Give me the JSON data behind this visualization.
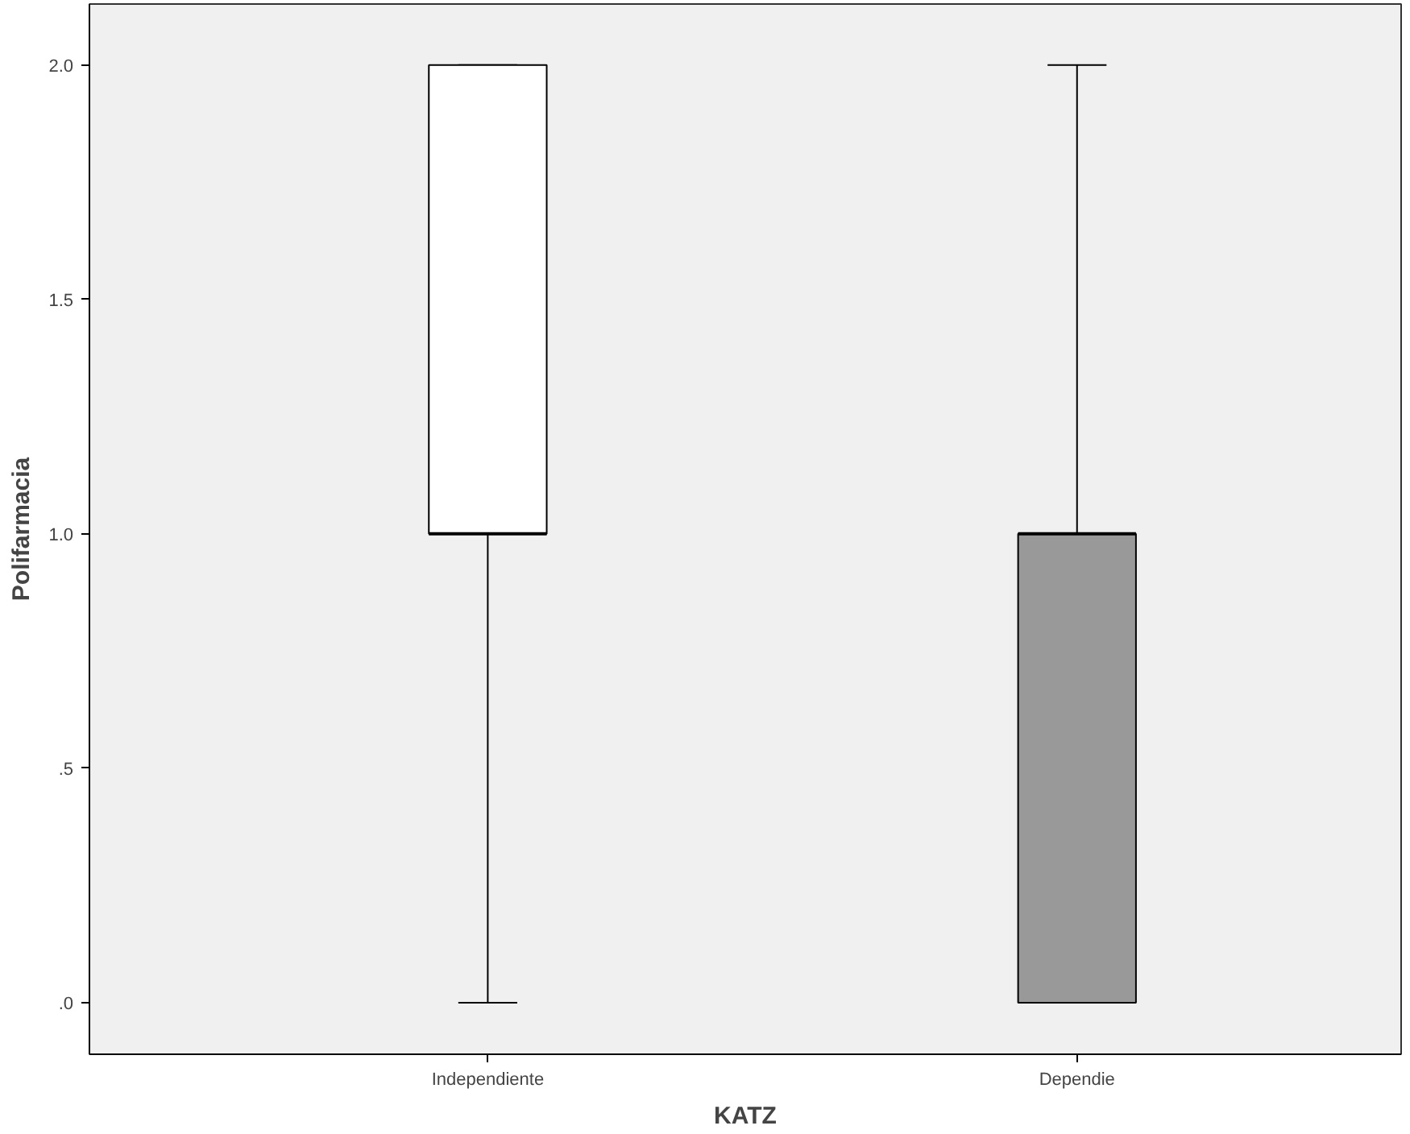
{
  "chart_data": {
    "type": "box",
    "xlabel": "KATZ",
    "ylabel": "Polifarmacia",
    "categories": [
      "Independiente",
      "Dependie"
    ],
    "colors": [
      "#ffffff",
      "#999999"
    ],
    "boxes": [
      {
        "low": 0,
        "q1": 1,
        "median": 1,
        "q3": 2,
        "high": 2
      },
      {
        "low": 0,
        "q1": 0,
        "median": 1,
        "q3": 1,
        "high": 2
      }
    ],
    "ylim": [
      -0.11,
      2.13
    ],
    "yticks": [
      {
        "value": 0,
        "label": ".0"
      },
      {
        "value": 0.5,
        "label": ".5"
      },
      {
        "value": 1.0,
        "label": "1.0"
      },
      {
        "value": 1.5,
        "label": "1.5"
      },
      {
        "value": 2.0,
        "label": "2.0"
      }
    ],
    "grid": false
  }
}
